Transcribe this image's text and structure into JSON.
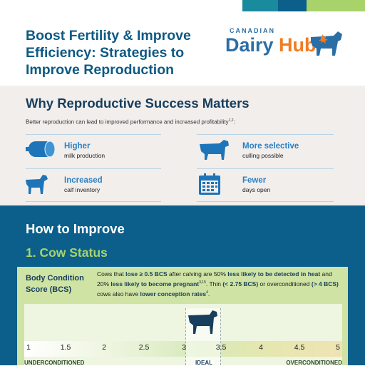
{
  "colors": {
    "primary_blue": "#0e5a84",
    "accent_blue": "#2a80c4",
    "brand_orange": "#f07c22",
    "section_green": "#a8d36a",
    "how_bg": "#0b5f8a"
  },
  "header": {
    "title": "Boost Fertility & Improve Efficiency: Strategies to Improve Reproduction",
    "logo_small": "CANADIAN",
    "logo_dairy": "Dairy ",
    "logo_hub": "Hub"
  },
  "why": {
    "heading": "Why Reproductive Success Matters",
    "intro": "Better reproduction can lead to improved performance and increased profitability",
    "intro_refs": "1,2",
    "intro_colon": ":",
    "benefits": [
      {
        "icon": "milk-tank-icon",
        "bold": "Higher",
        "sub": "milk production"
      },
      {
        "icon": "cow-icon",
        "bold": "More selective",
        "sub": "culling possible"
      },
      {
        "icon": "calf-icon",
        "bold": "Increased",
        "sub": "calf inventory"
      },
      {
        "icon": "calendar-icon",
        "bold": "Fewer",
        "sub": "days open"
      }
    ]
  },
  "how": {
    "heading": "How to Improve",
    "section": "1. Cow Status",
    "bcs": {
      "label": "Body Condition Score (BCS)",
      "d1": "Cows that ",
      "d2": "lose ≥ 0.5 BCS",
      "d3": " after calving are 50% ",
      "d4": "less likely to be detected in heat",
      "d5": " and 20% ",
      "d6": "less likely to become pregnant",
      "d6_refs": "3,15",
      "d7": ". Thin ",
      "d8": "(< 2.75 BCS)",
      "d9": " or overconditioned ",
      "d10": "(> 4 BCS)",
      "d11": " cows also have ",
      "d12": "lower conception rates",
      "d12_refs": "4",
      "d13": ".",
      "scale": [
        "1",
        "1.5",
        "2",
        "2.5",
        "3",
        "3.5",
        "4",
        "4.5",
        "5"
      ],
      "under": "UNDERCONDITIONED",
      "ideal": "IDEAL",
      "over": "OVERCONDITIONED"
    }
  }
}
